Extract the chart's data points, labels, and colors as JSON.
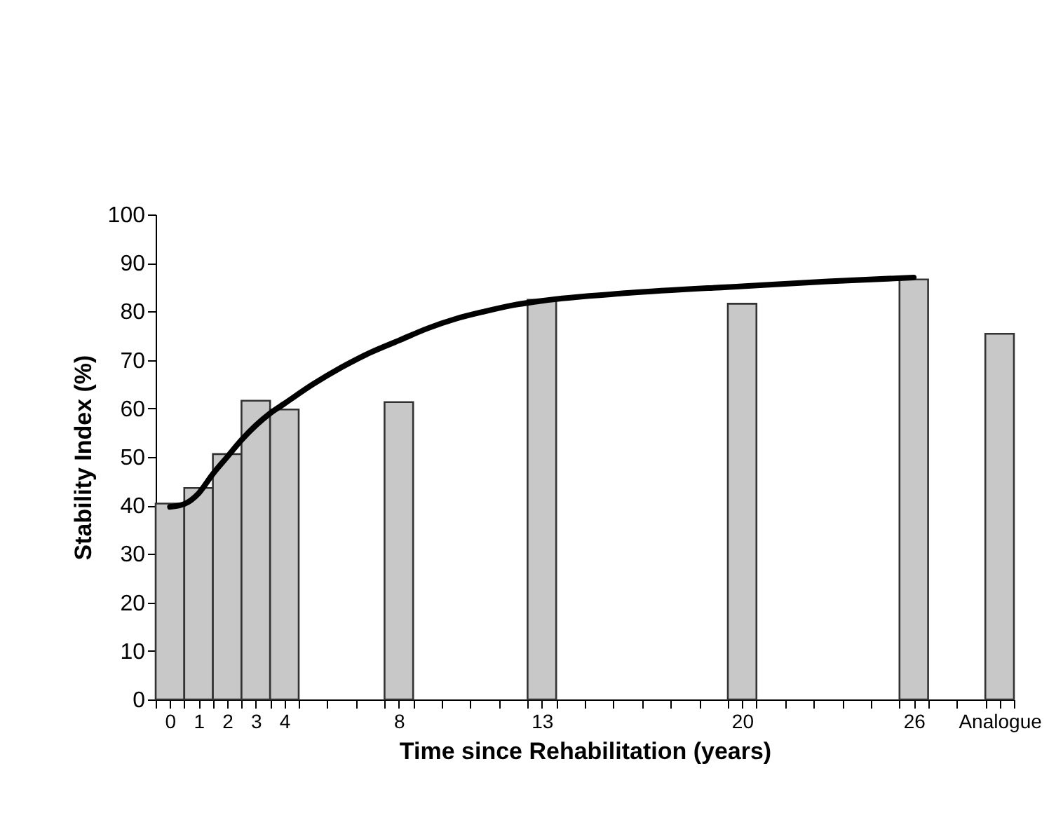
{
  "chart_data": {
    "type": "bar",
    "xlabel": "Time since Rehabilitation (years)",
    "ylabel": "Stability Index (%)",
    "x": [
      0,
      1,
      2,
      3,
      4,
      8,
      13,
      20,
      26,
      29
    ],
    "xlim": [
      -0.5,
      29.5
    ],
    "xticks": [
      0,
      1,
      2,
      3,
      4,
      8,
      13,
      20,
      26,
      {
        "value": 29,
        "label": "Analogue"
      },
      {
        "value": -0.5,
        "label": null
      },
      {
        "value": 0.5,
        "label": null
      },
      {
        "value": 1.5,
        "label": null
      },
      {
        "value": 2.5,
        "label": null
      },
      {
        "value": 3.5,
        "label": null
      },
      {
        "value": 4.5,
        "label": null
      },
      {
        "value": 5.5,
        "label": null
      },
      {
        "value": 6.5,
        "label": null
      },
      {
        "value": 7.5,
        "label": null
      },
      {
        "value": 8.5,
        "label": null
      },
      {
        "value": 9.5,
        "label": null
      },
      {
        "value": 10.5,
        "label": null
      },
      {
        "value": 11.5,
        "label": null
      },
      {
        "value": 12.5,
        "label": null
      },
      {
        "value": 13.5,
        "label": null
      },
      {
        "value": 14.5,
        "label": null
      },
      {
        "value": 15.5,
        "label": null
      },
      {
        "value": 16.5,
        "label": null
      },
      {
        "value": 17.5,
        "label": null
      },
      {
        "value": 18.5,
        "label": null
      },
      {
        "value": 19.5,
        "label": null
      },
      {
        "value": 20.5,
        "label": null
      },
      {
        "value": 21.5,
        "label": null
      },
      {
        "value": 22.5,
        "label": null
      },
      {
        "value": 23.5,
        "label": null
      },
      {
        "value": 24.5,
        "label": null
      },
      {
        "value": 25.5,
        "label": null
      },
      {
        "value": 26.5,
        "label": null
      },
      {
        "value": 27.5,
        "label": null
      },
      {
        "value": 28.5,
        "label": null
      },
      {
        "value": 29.5,
        "label": null
      }
    ],
    "ylim": [
      0,
      100
    ],
    "yticks": [
      0,
      10,
      20,
      30,
      40,
      50,
      60,
      70,
      80,
      90,
      100
    ],
    "grid": false,
    "series": [
      {
        "color": "#c8c8c8",
        "values": [
          40.4,
          43.6,
          50.6,
          61.6,
          59.8,
          61.3,
          82.4,
          81.6,
          86.6,
          75.4
        ]
      },
      {
        "type": "line",
        "color": "#000000",
        "marker": "none",
        "line_style": "solid",
        "x": [
          0,
          0.5,
          1,
          1.5,
          2,
          2.5,
          3,
          3.5,
          4,
          5,
          6,
          7,
          8,
          9,
          10,
          11,
          12,
          13,
          16,
          20,
          23,
          26
        ],
        "values": [
          39.7,
          40.3,
          42.5,
          46.5,
          50,
          53.5,
          56.5,
          59,
          61,
          65,
          68.5,
          71.5,
          74,
          76.5,
          78.5,
          80,
          81.3,
          82.2,
          83.8,
          85.2,
          86.2,
          87
        ]
      }
    ]
  }
}
